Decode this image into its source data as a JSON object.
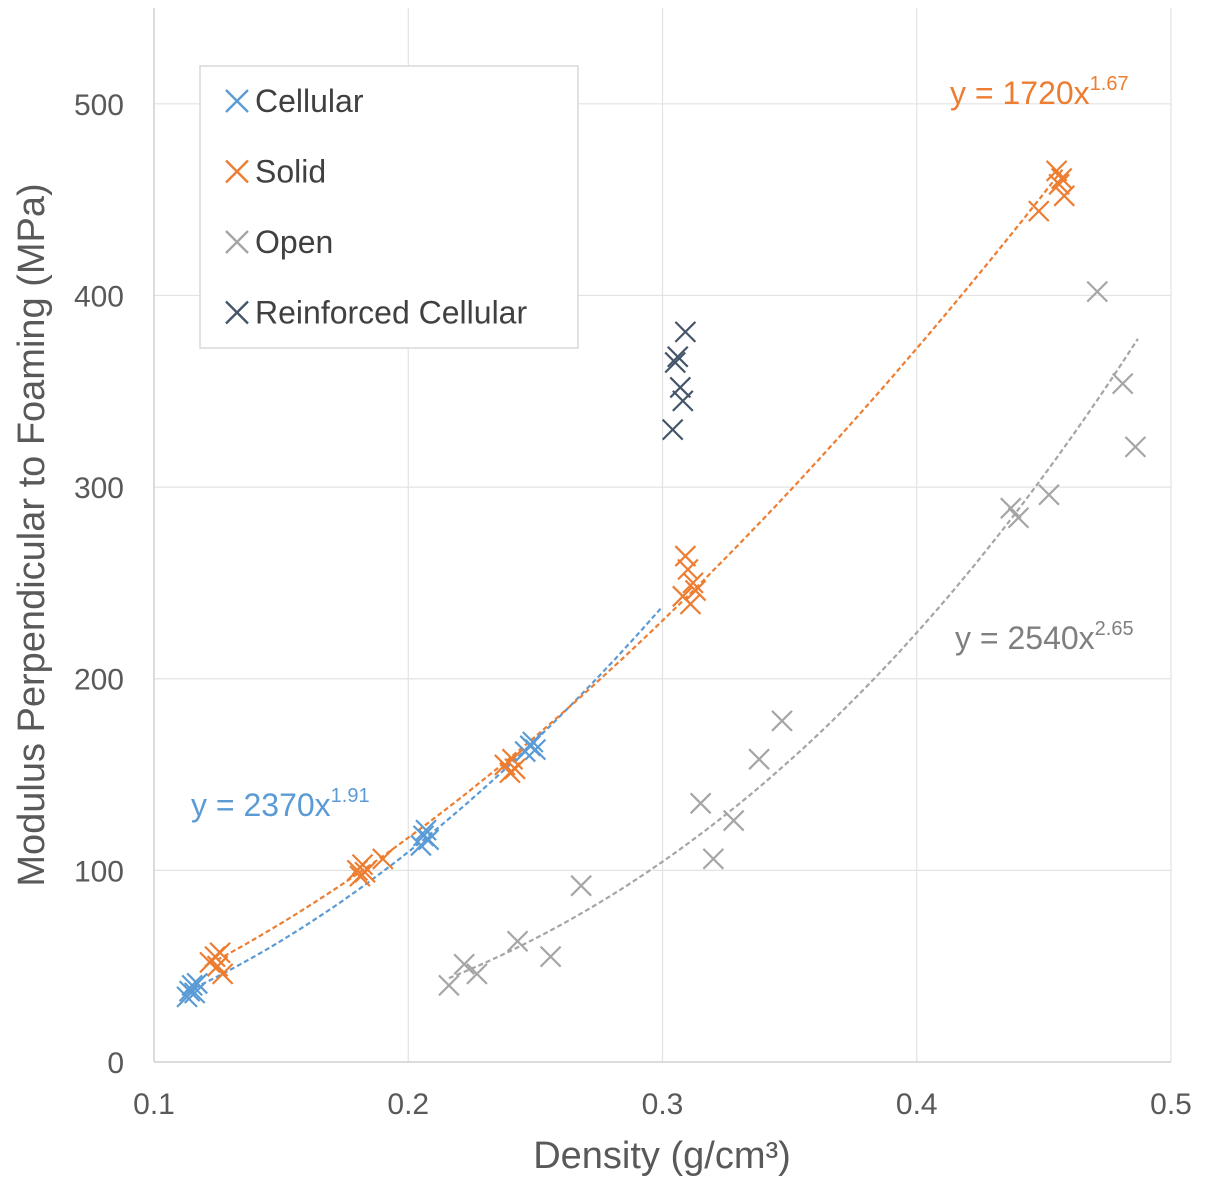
{
  "chart_data": {
    "type": "scatter",
    "title": "",
    "xlabel": "Density (g/cm³)",
    "ylabel": "Modulus Perpendicular to Foaming (MPa)",
    "xlim": [
      0.1,
      0.5
    ],
    "ylim": [
      0,
      550
    ],
    "x_ticks": [
      {
        "value": 0.1,
        "label": "0.1"
      },
      {
        "value": 0.2,
        "label": "0.2"
      },
      {
        "value": 0.3,
        "label": "0.3"
      },
      {
        "value": 0.4,
        "label": "0.4"
      },
      {
        "value": 0.5,
        "label": "0.5"
      }
    ],
    "y_ticks": [
      {
        "value": 0,
        "label": "0"
      },
      {
        "value": 100,
        "label": "100"
      },
      {
        "value": 200,
        "label": "200"
      },
      {
        "value": 300,
        "label": "300"
      },
      {
        "value": 400,
        "label": "400"
      },
      {
        "value": 500,
        "label": "500"
      }
    ],
    "grid": true,
    "legend_position": "top-left",
    "marker": "x",
    "series": [
      {
        "name": "Cellular",
        "color": "#5B9BD5",
        "points": [
          [
            0.113,
            34
          ],
          [
            0.114,
            37
          ],
          [
            0.115,
            40
          ],
          [
            0.116,
            36
          ],
          [
            0.117,
            41
          ],
          [
            0.205,
            113
          ],
          [
            0.206,
            118
          ],
          [
            0.207,
            121
          ],
          [
            0.208,
            116
          ],
          [
            0.246,
            162
          ],
          [
            0.248,
            165
          ],
          [
            0.249,
            167
          ],
          [
            0.25,
            163
          ]
        ],
        "trendline": {
          "a": 2370,
          "b": 1.91,
          "x_range": [
            0.113,
            0.3
          ]
        }
      },
      {
        "name": "Solid",
        "color": "#ED7D31",
        "points": [
          [
            0.122,
            52
          ],
          [
            0.124,
            55
          ],
          [
            0.125,
            50
          ],
          [
            0.126,
            57
          ],
          [
            0.127,
            46
          ],
          [
            0.18,
            100
          ],
          [
            0.181,
            97
          ],
          [
            0.182,
            103
          ],
          [
            0.183,
            99
          ],
          [
            0.19,
            106
          ],
          [
            0.238,
            155
          ],
          [
            0.24,
            151
          ],
          [
            0.241,
            158
          ],
          [
            0.242,
            153
          ],
          [
            0.308,
            243
          ],
          [
            0.309,
            264
          ],
          [
            0.31,
            257
          ],
          [
            0.311,
            239
          ],
          [
            0.312,
            250
          ],
          [
            0.313,
            246
          ],
          [
            0.448,
            444
          ],
          [
            0.455,
            465
          ],
          [
            0.456,
            458
          ],
          [
            0.457,
            461
          ],
          [
            0.458,
            452
          ]
        ],
        "trendline": {
          "a": 1720,
          "b": 1.67,
          "x_range": [
            0.122,
            0.458
          ]
        }
      },
      {
        "name": "Open",
        "color": "#A5A5A5",
        "points": [
          [
            0.216,
            40
          ],
          [
            0.222,
            51
          ],
          [
            0.227,
            46
          ],
          [
            0.243,
            63
          ],
          [
            0.256,
            55
          ],
          [
            0.268,
            92
          ],
          [
            0.315,
            135
          ],
          [
            0.32,
            106
          ],
          [
            0.328,
            126
          ],
          [
            0.338,
            158
          ],
          [
            0.347,
            178
          ],
          [
            0.437,
            289
          ],
          [
            0.44,
            284
          ],
          [
            0.452,
            296
          ],
          [
            0.471,
            402
          ],
          [
            0.481,
            354
          ],
          [
            0.486,
            321
          ]
        ],
        "trendline": {
          "a": 2540,
          "b": 2.65,
          "x_range": [
            0.216,
            0.487
          ]
        }
      },
      {
        "name": "Reinforced Cellular",
        "color": "#44546A",
        "points": [
          [
            0.304,
            330
          ],
          [
            0.305,
            365
          ],
          [
            0.306,
            368
          ],
          [
            0.307,
            352
          ],
          [
            0.308,
            345
          ],
          [
            0.309,
            381
          ]
        ]
      }
    ],
    "equations": [
      {
        "series": "Solid",
        "text": "y = 1720x",
        "exponent": "1.67",
        "color": "#ED7D31",
        "anchor": "top-right"
      },
      {
        "series": "Open",
        "text": "y = 2540x",
        "exponent": "2.65",
        "color": "#7F7F7F",
        "anchor": "right"
      },
      {
        "series": "Cellular",
        "text": "y = 2370x",
        "exponent": "1.91",
        "color": "#5B9BD5",
        "anchor": "left"
      }
    ]
  }
}
